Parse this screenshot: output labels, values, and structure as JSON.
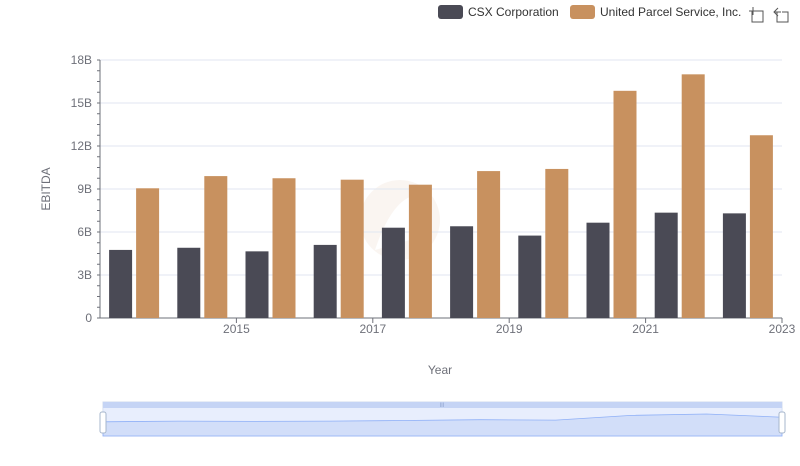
{
  "chart_data": {
    "type": "bar",
    "x": [
      2014,
      2015,
      2016,
      2017,
      2018,
      2019,
      2020,
      2021,
      2022,
      2023
    ],
    "x_tick_labels": [
      "2015",
      "2017",
      "2019",
      "2021",
      "2023"
    ],
    "xlabel": "Year",
    "ylabel": "EBITDA",
    "ylim": [
      0,
      18
    ],
    "y_unit": "B",
    "y_tick_labels": [
      "0",
      "3B",
      "6B",
      "9B",
      "12B",
      "15B",
      "18B"
    ],
    "grid": true,
    "legend_position": "top-right",
    "series": [
      {
        "name": "CSX Corporation",
        "color": "#4a4a55",
        "values": [
          4.75,
          4.9,
          4.65,
          5.1,
          6.3,
          6.4,
          5.75,
          6.65,
          7.35,
          7.3
        ]
      },
      {
        "name": "United Parcel Service, Inc.",
        "color": "#c8915f",
        "values": [
          9.05,
          9.9,
          9.75,
          9.65,
          9.3,
          10.25,
          10.4,
          15.85,
          17.0,
          12.75
        ]
      }
    ]
  },
  "toolbar": {
    "zoom_icon": "zoom-icon",
    "restore_icon": "restore-icon"
  },
  "data_zoom": {
    "handle_color": "#c5d4f5",
    "fill_color": "#d9e3fb",
    "line_color": "#8fb0f7"
  }
}
